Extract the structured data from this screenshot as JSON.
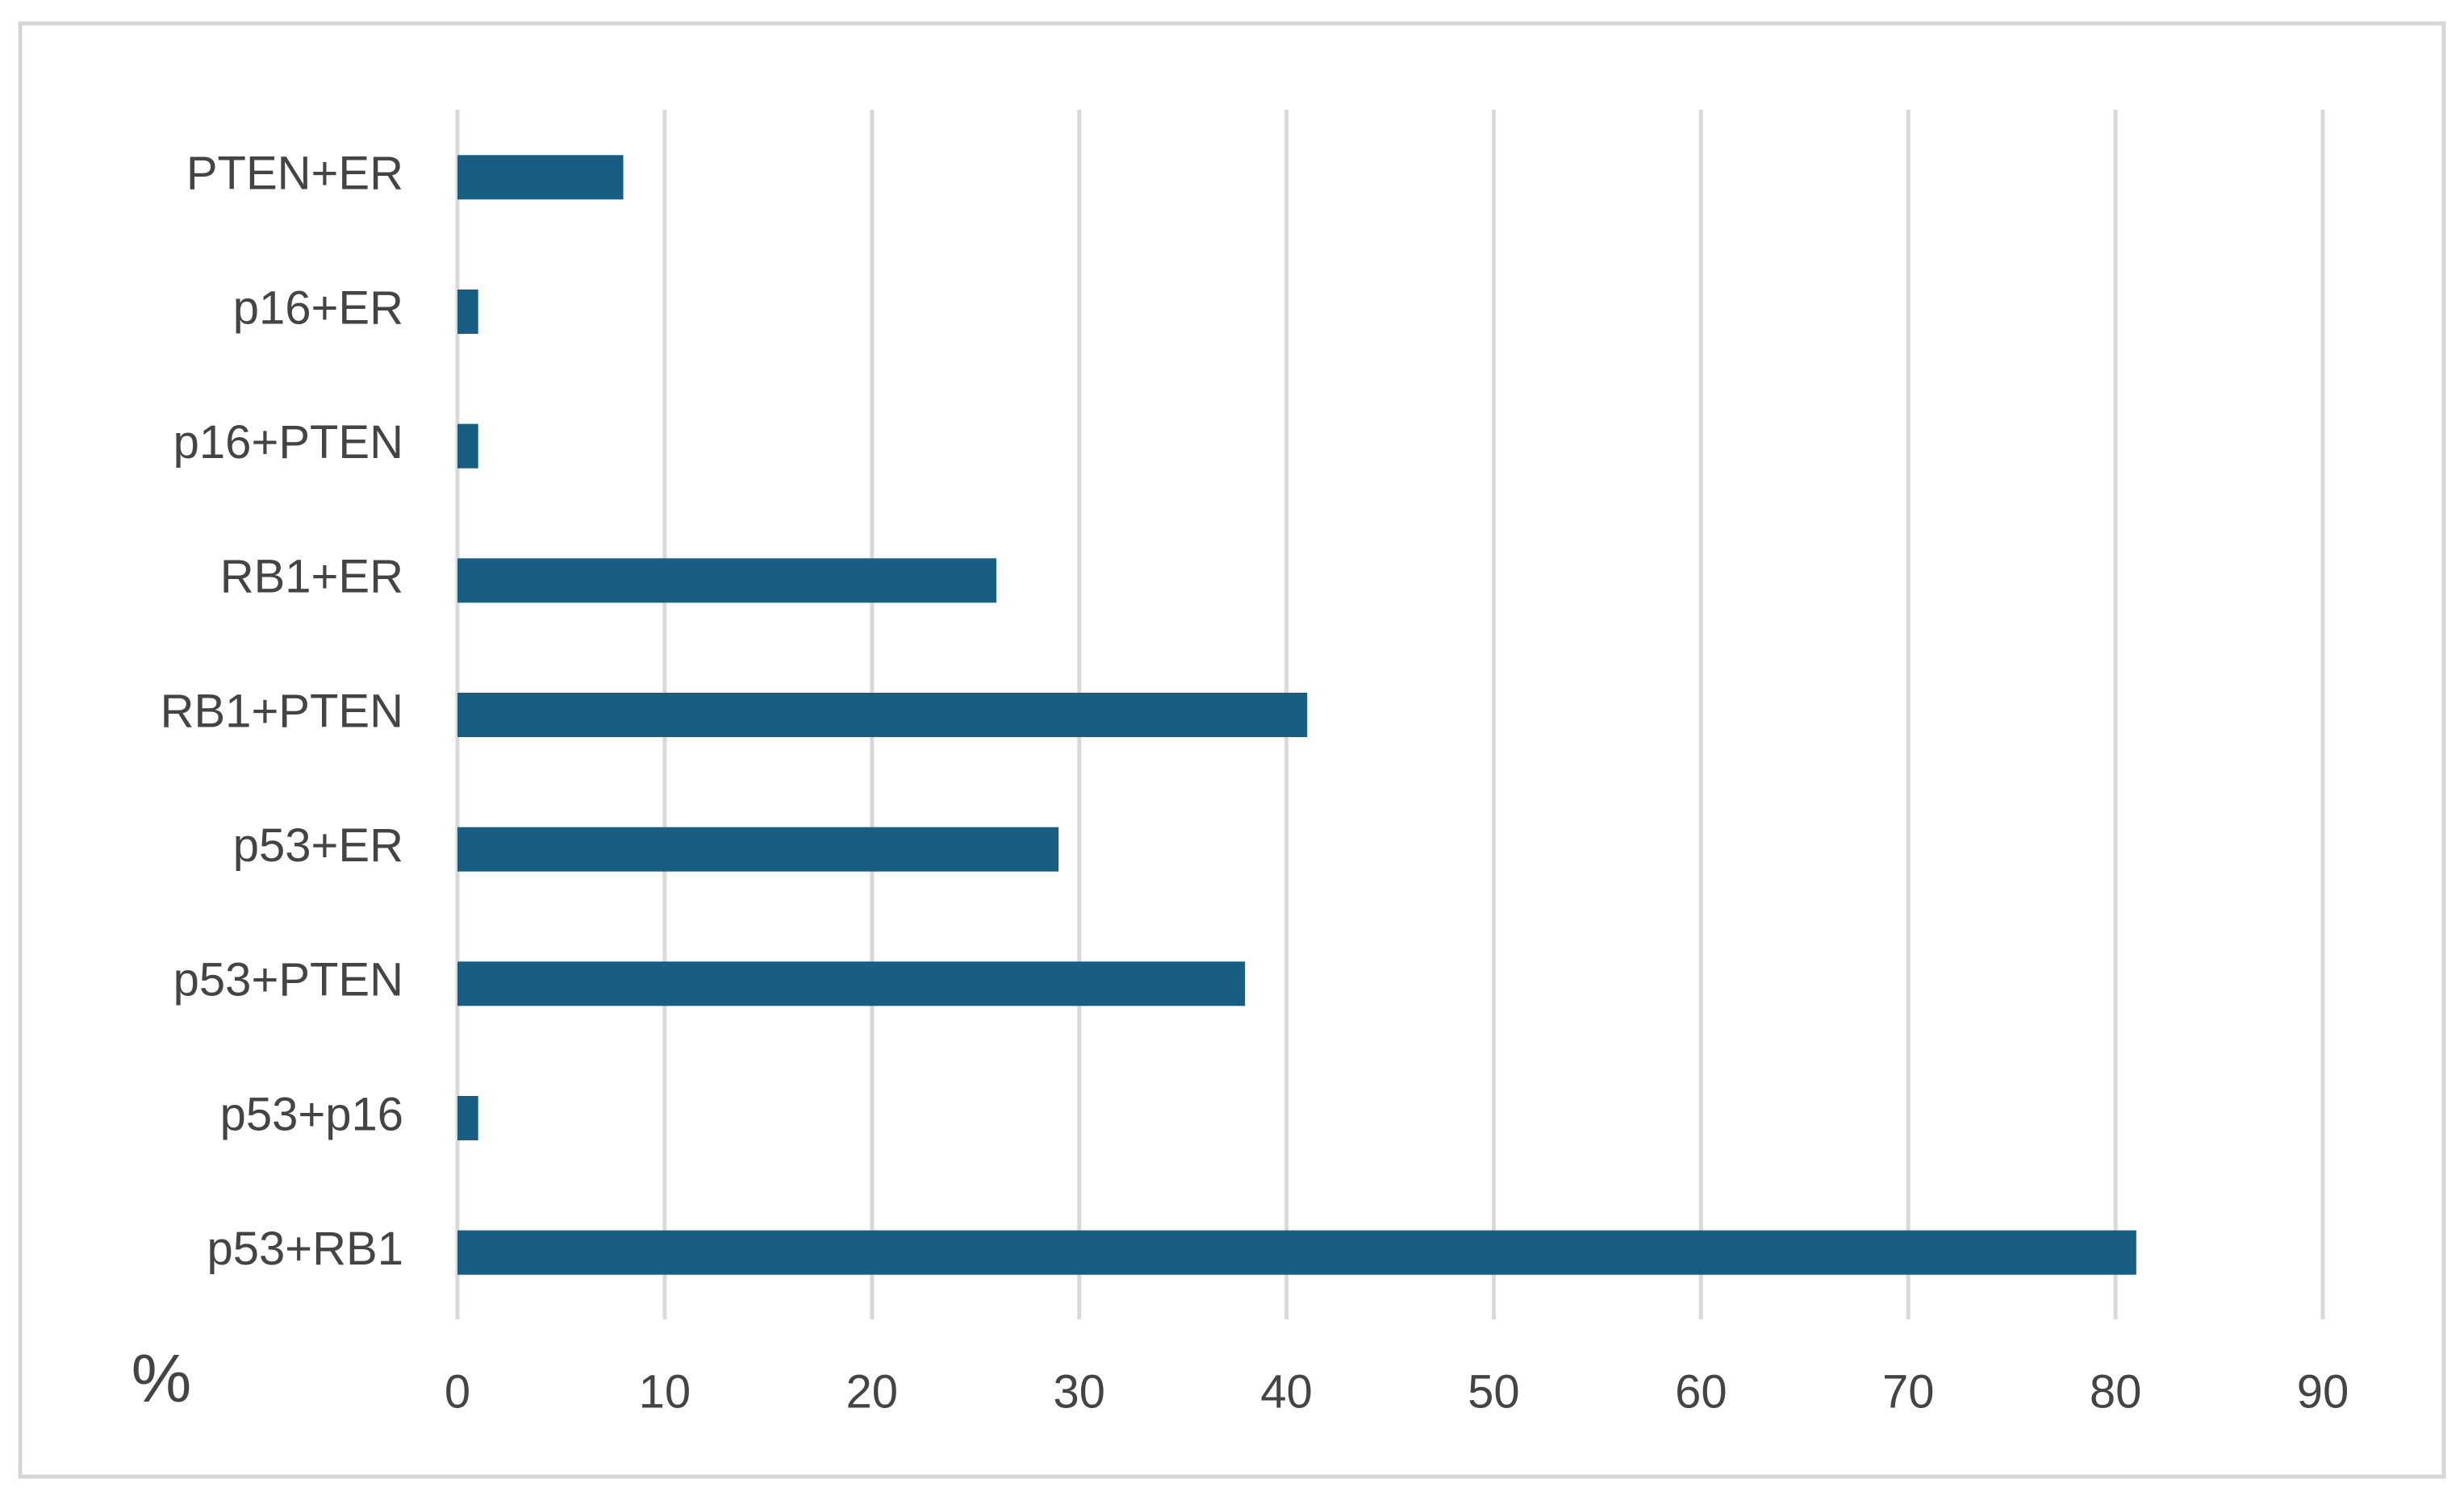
{
  "chart_data": {
    "type": "bar",
    "orientation": "horizontal",
    "categories": [
      "PTEN+ER",
      "p16+ER",
      "p16+PTEN",
      "RB1+ER",
      "RB1+PTEN",
      "p53+ER",
      "p53+PTEN",
      "p53+p16",
      "p53+RB1"
    ],
    "values": [
      8,
      1,
      1,
      26,
      41,
      29,
      38,
      1,
      81
    ],
    "color": "#175e82",
    "x_label": "%",
    "xlim": [
      0,
      90
    ],
    "xticks": [
      0,
      10,
      20,
      30,
      40,
      50,
      60,
      70,
      80,
      90
    ],
    "grid": true
  }
}
